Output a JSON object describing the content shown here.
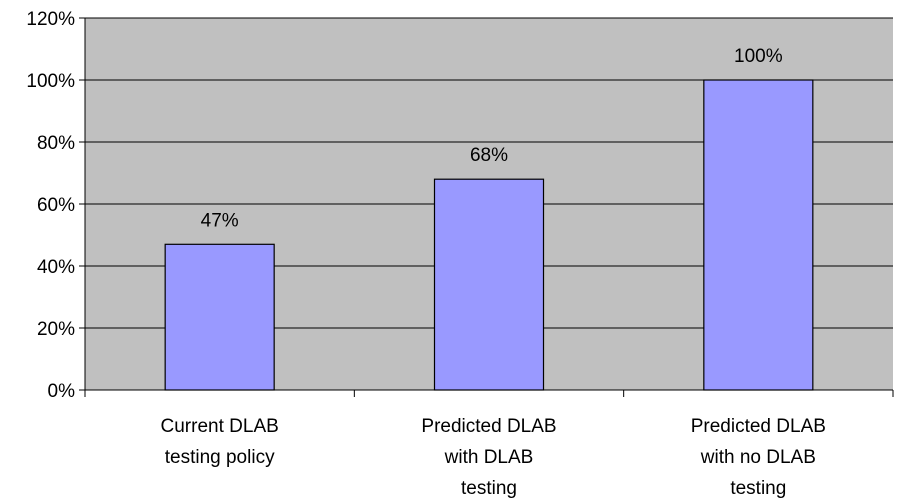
{
  "chart_data": {
    "type": "bar",
    "categories": [
      [
        "Current DLAB",
        "testing policy"
      ],
      [
        "Predicted DLAB",
        "with DLAB",
        "testing"
      ],
      [
        "Predicted DLAB",
        "with no DLAB",
        "testing"
      ]
    ],
    "values": [
      47,
      68,
      100
    ],
    "data_labels": [
      "47%",
      "68%",
      "100%"
    ],
    "ylim": [
      0,
      120
    ],
    "yticks": [
      0,
      20,
      40,
      60,
      80,
      100,
      120
    ],
    "ytick_labels": [
      "0%",
      "20%",
      "40%",
      "60%",
      "80%",
      "100%",
      "120%"
    ],
    "grid": true,
    "legend": "none",
    "colors": {
      "plot_background": "#c0c0c0",
      "bar_fill": "#9999ff",
      "bar_stroke": "#000000",
      "gridline": "#000000"
    }
  }
}
